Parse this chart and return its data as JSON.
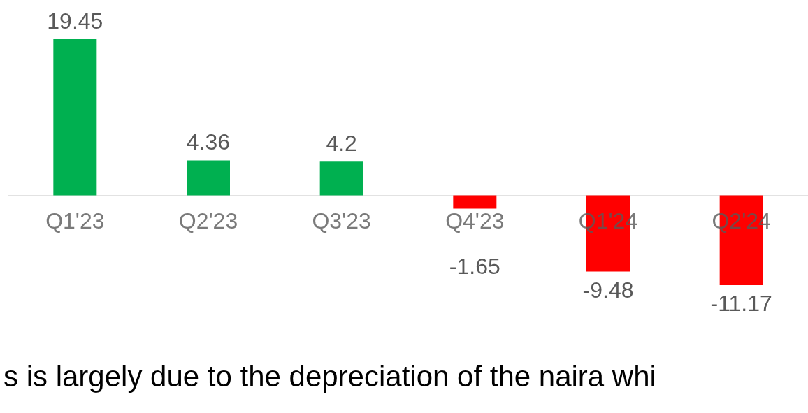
{
  "chart_data": {
    "type": "bar",
    "categories": [
      "Q1'23",
      "Q2'23",
      "Q3'23",
      "Q4'23",
      "Q1'24",
      "Q2'24"
    ],
    "values": [
      19.45,
      4.36,
      4.2,
      -1.65,
      -9.48,
      -11.17
    ],
    "colors": [
      "#00b050",
      "#00b050",
      "#00b050",
      "#ff0000",
      "#ff0000",
      "#ff0000"
    ],
    "data_labels": true,
    "grid": false,
    "annotations": [
      "s is largely due to the depreciation of the naira whi"
    ]
  }
}
